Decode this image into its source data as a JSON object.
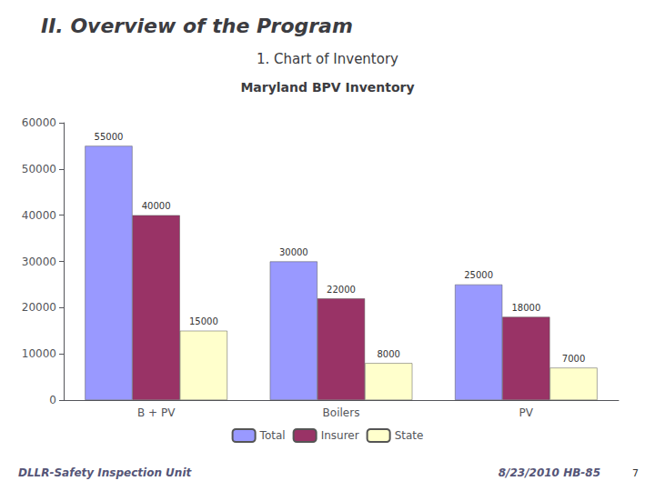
{
  "chart_data": {
    "type": "bar",
    "title": "Maryland BPV Inventory",
    "categories": [
      "B + PV",
      "Boilers",
      "PV"
    ],
    "series": [
      {
        "name": "Total",
        "color": "#9999FF",
        "values": [
          55000,
          30000,
          25000
        ]
      },
      {
        "name": "Insurer",
        "color": "#993366",
        "values": [
          40000,
          22000,
          18000
        ]
      },
      {
        "name": "State",
        "color": "#FFFFCC",
        "values": [
          15000,
          8000,
          7000
        ]
      }
    ],
    "ylim": [
      0,
      60000
    ],
    "yticks": [
      0,
      10000,
      20000,
      30000,
      40000,
      50000,
      60000
    ],
    "grid": false,
    "legend": "bottom",
    "data_labels": true,
    "annotations": [
      "II. Overview of the Program",
      "1. Chart of Inventory",
      "DLLR-Safety Inspection Unit",
      "8/23/2010 HB-85",
      "7"
    ]
  }
}
